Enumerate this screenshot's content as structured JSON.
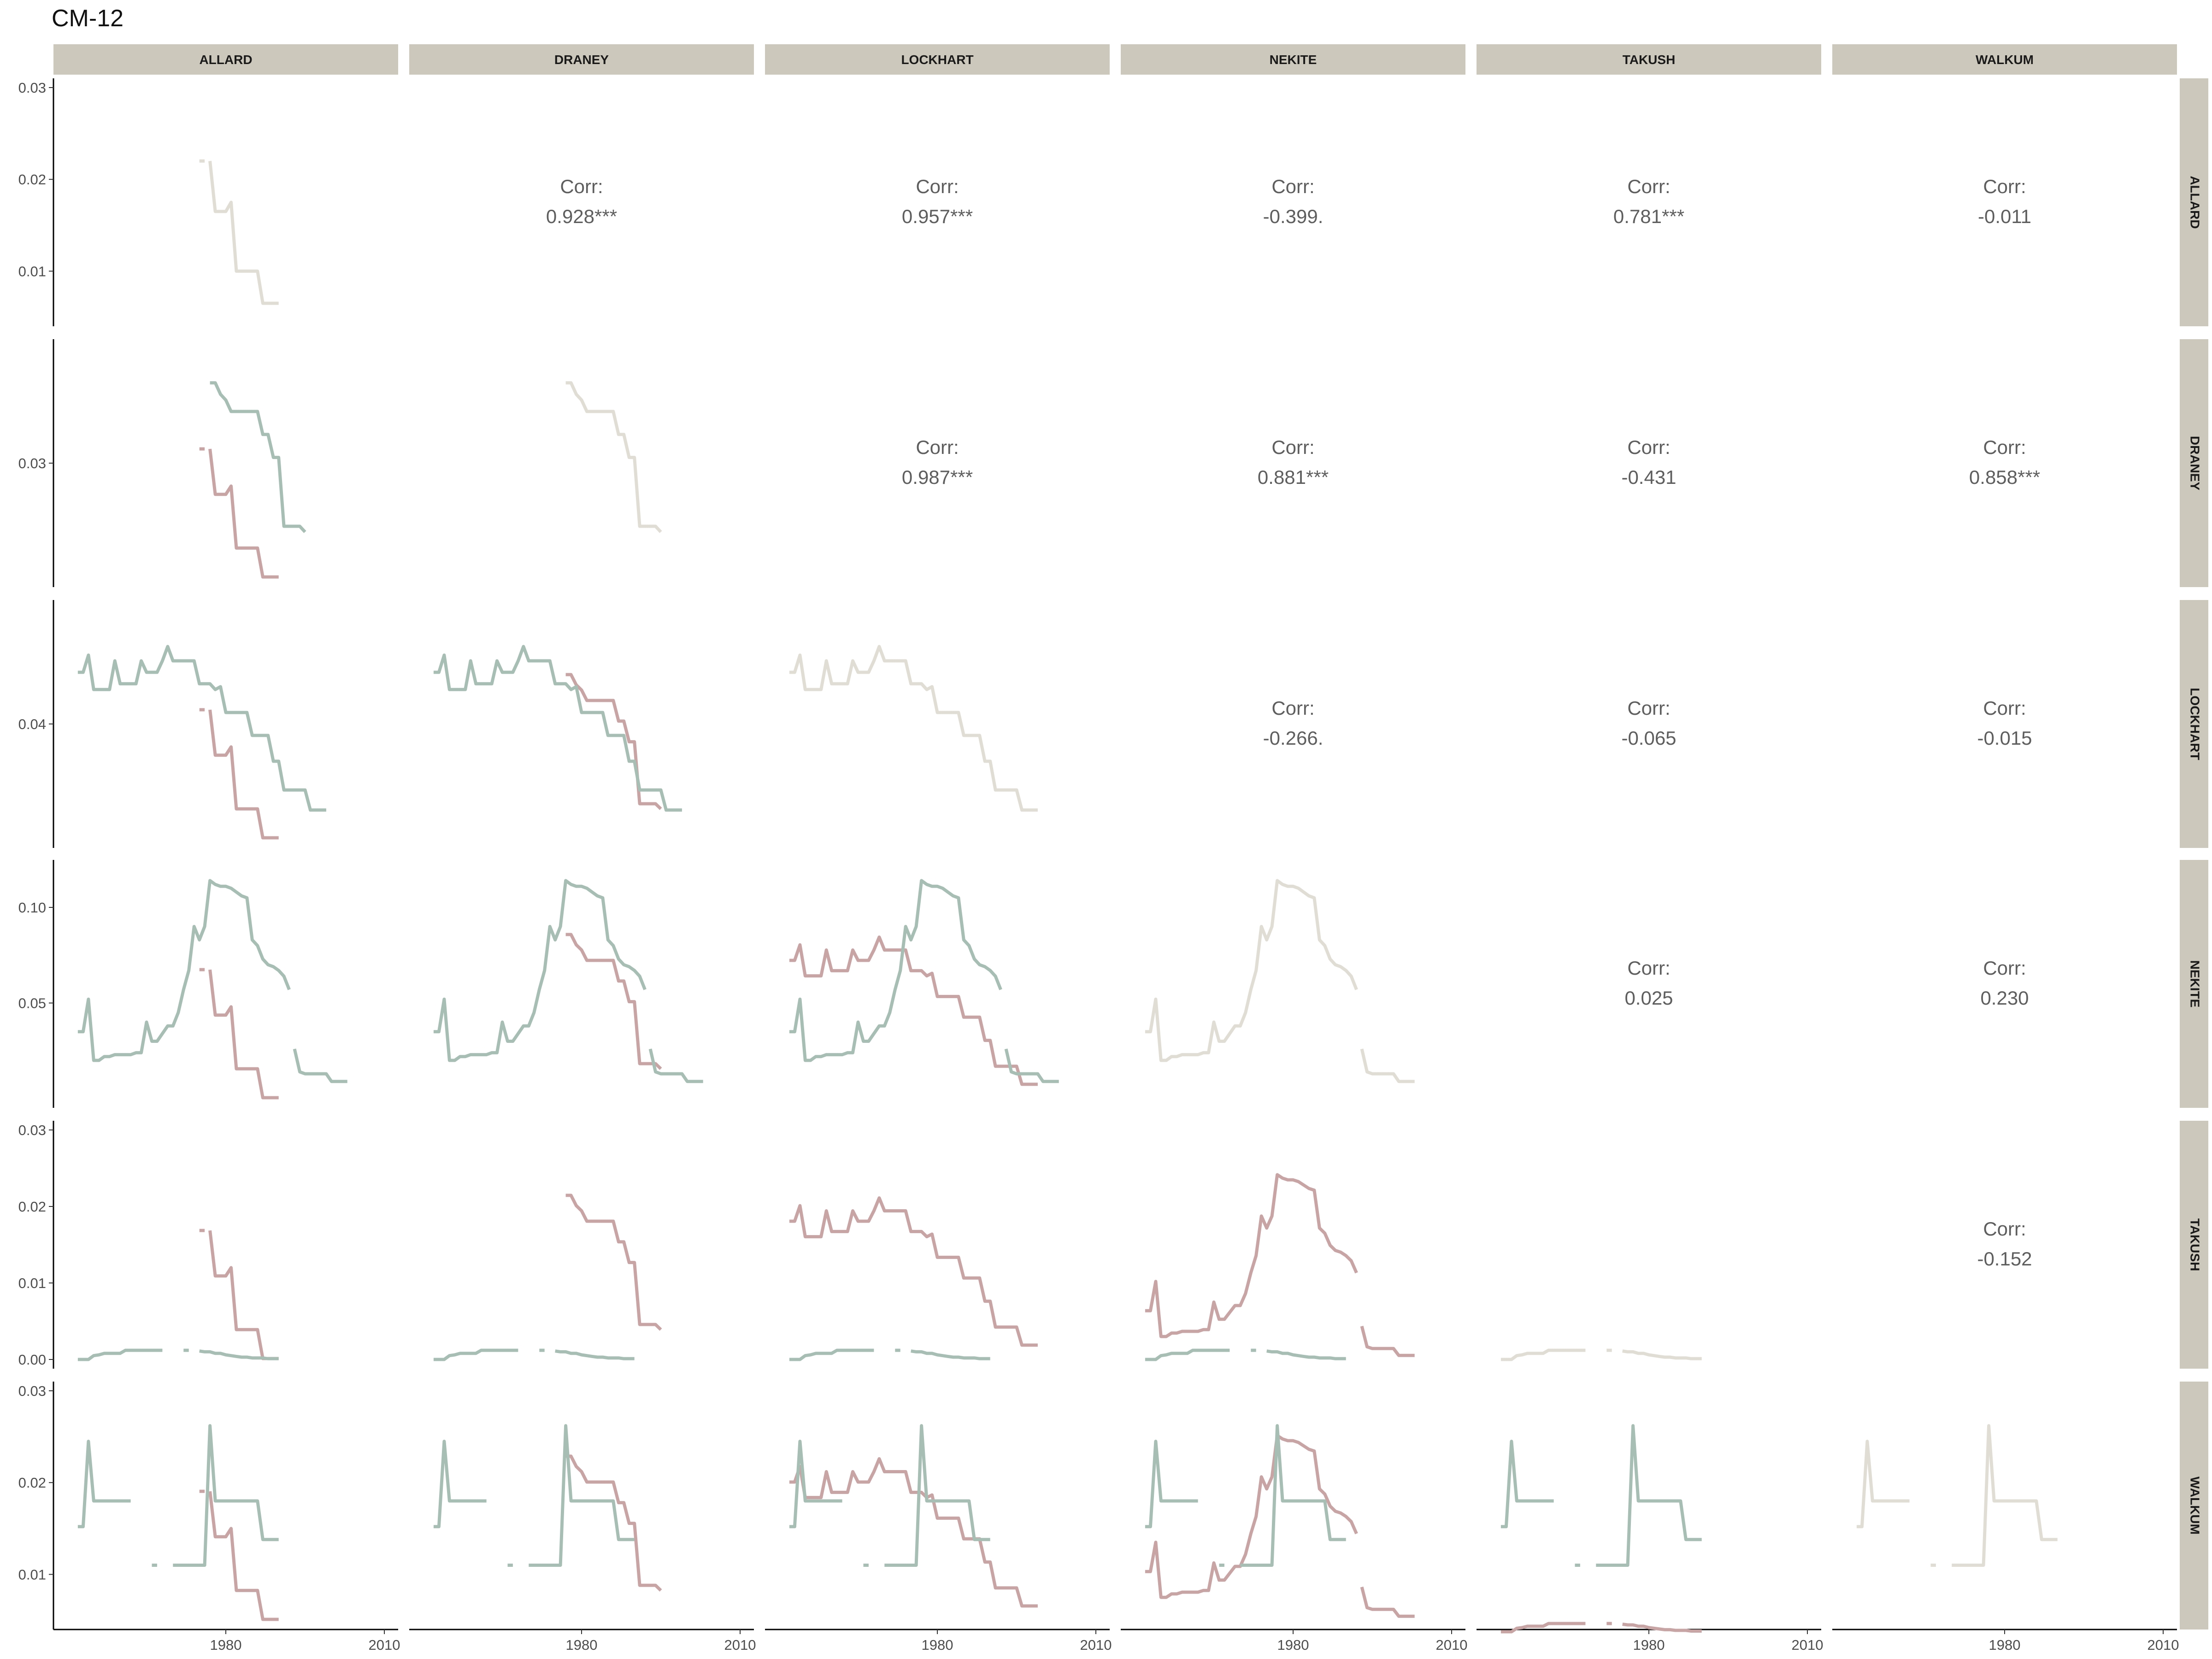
{
  "chart_data": {
    "type": "line",
    "title": "CM-12",
    "variables": [
      "ALLARD",
      "DRANEY",
      "LOCKHART",
      "NEKITE",
      "TAKUSH",
      "WALKUM"
    ],
    "x_ticks": [
      "1980",
      "2010"
    ],
    "x_range": [
      1950,
      2010
    ],
    "series_colors": {
      "diagonal": "#e0ddd5",
      "green": "#a7beb5",
      "red": "#c8a4a5"
    },
    "strip_color": "#ccc8bb",
    "correlations": [
      {
        "row": "ALLARD",
        "col": "DRANEY",
        "label": "Corr:",
        "value": "0.928***"
      },
      {
        "row": "ALLARD",
        "col": "LOCKHART",
        "label": "Corr:",
        "value": "0.957***"
      },
      {
        "row": "ALLARD",
        "col": "NEKITE",
        "label": "Corr:",
        "value": "-0.399."
      },
      {
        "row": "ALLARD",
        "col": "TAKUSH",
        "label": "Corr:",
        "value": "0.781***"
      },
      {
        "row": "ALLARD",
        "col": "WALKUM",
        "label": "Corr:",
        "value": "-0.011"
      },
      {
        "row": "DRANEY",
        "col": "LOCKHART",
        "label": "Corr:",
        "value": "0.987***"
      },
      {
        "row": "DRANEY",
        "col": "NEKITE",
        "label": "Corr:",
        "value": "0.881***"
      },
      {
        "row": "DRANEY",
        "col": "TAKUSH",
        "label": "Corr:",
        "value": "-0.431"
      },
      {
        "row": "DRANEY",
        "col": "WALKUM",
        "label": "Corr:",
        "value": "0.858***"
      },
      {
        "row": "LOCKHART",
        "col": "NEKITE",
        "label": "Corr:",
        "value": "-0.266."
      },
      {
        "row": "LOCKHART",
        "col": "TAKUSH",
        "label": "Corr:",
        "value": "-0.065"
      },
      {
        "row": "LOCKHART",
        "col": "WALKUM",
        "label": "Corr:",
        "value": "-0.015"
      },
      {
        "row": "NEKITE",
        "col": "TAKUSH",
        "label": "Corr:",
        "value": "0.025"
      },
      {
        "row": "NEKITE",
        "col": "WALKUM",
        "label": "Corr:",
        "value": "0.230"
      },
      {
        "row": "TAKUSH",
        "col": "WALKUM",
        "label": "Corr:",
        "value": "-0.152"
      }
    ],
    "row_axes": [
      {
        "var": "ALLARD",
        "range": [
          0.005,
          0.03
        ],
        "ticks": [
          {
            "v": 0.03,
            "label": "0.03"
          },
          {
            "v": 0.02,
            "label": "0.02"
          },
          {
            "v": 0.01,
            "label": "0.01"
          }
        ]
      },
      {
        "var": "DRANEY",
        "range": [
          0.02,
          0.04
        ],
        "ticks": [
          {
            "v": 0.03,
            "label": "0.03"
          }
        ]
      },
      {
        "var": "LOCKHART",
        "range": [
          0.02,
          0.06
        ],
        "ticks": [
          {
            "v": 0.04,
            "label": "0.04"
          }
        ]
      },
      {
        "var": "NEKITE",
        "range": [
          0.0,
          0.12
        ],
        "ticks": [
          {
            "v": 0.1,
            "label": "0.10"
          },
          {
            "v": 0.05,
            "label": "0.05"
          }
        ]
      },
      {
        "var": "TAKUSH",
        "range": [
          0.0,
          0.03
        ],
        "ticks": [
          {
            "v": 0.03,
            "label": "0.03"
          },
          {
            "v": 0.02,
            "label": "0.02"
          },
          {
            "v": 0.01,
            "label": "0.01"
          },
          {
            "v": 0.0,
            "label": "0.00"
          }
        ]
      },
      {
        "var": "WALKUM",
        "range": [
          0.005,
          0.03
        ],
        "ticks": [
          {
            "v": 0.03,
            "label": "0.03"
          },
          {
            "v": 0.02,
            "label": "0.02"
          },
          {
            "v": 0.01,
            "label": "0.01"
          }
        ]
      }
    ],
    "series_values": {
      "ALLARD": [
        [
          1975,
          0.022
        ],
        [
          1976,
          0.022
        ],
        null,
        [
          1977,
          0.022
        ],
        [
          1978,
          0.0165
        ],
        [
          1980,
          0.0165
        ],
        [
          1981,
          0.0175
        ],
        [
          1982,
          0.01
        ],
        [
          1986,
          0.01
        ],
        [
          1987,
          0.0065
        ],
        [
          1990,
          0.0065
        ]
      ],
      "DRANEY": [
        [
          1977,
          0.037
        ],
        [
          1978,
          0.037
        ],
        [
          1979,
          0.036
        ],
        [
          1980,
          0.0355
        ],
        [
          1981,
          0.0345
        ],
        [
          1986,
          0.0345
        ],
        [
          1987,
          0.0325
        ],
        [
          1988,
          0.0325
        ],
        [
          1989,
          0.0305
        ],
        [
          1990,
          0.0305
        ],
        [
          1991,
          0.0245
        ],
        [
          1994,
          0.0245
        ],
        [
          1995,
          0.024
        ]
      ],
      "LOCKHART": [
        [
          1952,
          0.049
        ],
        [
          1953,
          0.049
        ],
        [
          1954,
          0.052
        ],
        [
          1955,
          0.046
        ],
        [
          1958,
          0.046
        ],
        [
          1959,
          0.051
        ],
        [
          1960,
          0.047
        ],
        [
          1963,
          0.047
        ],
        [
          1964,
          0.051
        ],
        [
          1965,
          0.049
        ],
        [
          1967,
          0.049
        ],
        [
          1968,
          0.051
        ],
        [
          1969,
          0.0535
        ],
        [
          1970,
          0.051
        ],
        [
          1974,
          0.051
        ],
        [
          1975,
          0.047
        ],
        [
          1977,
          0.047
        ],
        [
          1978,
          0.046
        ],
        [
          1979,
          0.0465
        ],
        [
          1980,
          0.042
        ],
        [
          1984,
          0.042
        ],
        [
          1985,
          0.038
        ],
        [
          1988,
          0.038
        ],
        [
          1989,
          0.0335
        ],
        [
          1990,
          0.0335
        ],
        [
          1991,
          0.0285
        ],
        [
          1995,
          0.0285
        ],
        [
          1996,
          0.025
        ],
        [
          1999,
          0.025
        ]
      ],
      "NEKITE": [
        [
          1952,
          0.035
        ],
        [
          1953,
          0.035
        ],
        [
          1954,
          0.052
        ],
        [
          1955,
          0.02
        ],
        [
          1956,
          0.02
        ],
        [
          1957,
          0.022
        ],
        [
          1958,
          0.022
        ],
        [
          1959,
          0.023
        ],
        [
          1962,
          0.023
        ],
        [
          1963,
          0.024
        ],
        [
          1964,
          0.024
        ],
        [
          1965,
          0.04
        ],
        [
          1966,
          0.03
        ],
        [
          1967,
          0.03
        ],
        [
          1968,
          0.034
        ],
        [
          1969,
          0.038
        ],
        [
          1970,
          0.038
        ],
        [
          1971,
          0.045
        ],
        [
          1972,
          0.057
        ],
        [
          1973,
          0.067
        ],
        [
          1974,
          0.09
        ],
        [
          1975,
          0.083
        ],
        [
          1976,
          0.09
        ],
        [
          1977,
          0.114
        ],
        [
          1978,
          0.112
        ],
        [
          1979,
          0.111
        ],
        [
          1980,
          0.111
        ],
        [
          1981,
          0.11
        ],
        [
          1982,
          0.108
        ],
        [
          1983,
          0.106
        ],
        [
          1984,
          0.105
        ],
        [
          1985,
          0.083
        ],
        [
          1986,
          0.08
        ],
        [
          1987,
          0.073
        ],
        [
          1988,
          0.07
        ],
        [
          1989,
          0.069
        ],
        [
          1990,
          0.067
        ],
        [
          1991,
          0.064
        ],
        [
          1992,
          0.057
        ],
        null,
        [
          1993,
          0.026
        ],
        [
          1994,
          0.014
        ],
        [
          1995,
          0.013
        ],
        [
          1999,
          0.013
        ],
        [
          2000,
          0.009
        ],
        [
          2003,
          0.009
        ]
      ],
      "TAKUSH": [
        [
          1952,
          0.0
        ],
        [
          1953,
          0.0
        ],
        [
          1954,
          0.0
        ],
        [
          1955,
          0.0005
        ],
        [
          1956,
          0.0006
        ],
        [
          1957,
          0.0008
        ],
        [
          1960,
          0.0008
        ],
        [
          1961,
          0.0012
        ],
        [
          1962,
          0.0012
        ],
        [
          1963,
          0.0012
        ],
        [
          1964,
          0.0012
        ],
        [
          1965,
          0.0012
        ],
        [
          1966,
          0.0012
        ],
        [
          1967,
          0.0012
        ],
        [
          1968,
          0.0012
        ],
        null,
        [
          1972,
          0.0012
        ],
        [
          1973,
          0.0012
        ],
        null,
        [
          1975,
          0.0011
        ],
        [
          1976,
          0.001
        ],
        [
          1977,
          0.001
        ],
        [
          1978,
          0.0008
        ],
        [
          1979,
          0.0008
        ],
        [
          1980,
          0.0006
        ],
        [
          1981,
          0.0005
        ],
        [
          1982,
          0.0004
        ],
        [
          1983,
          0.0003
        ],
        [
          1984,
          0.0003
        ],
        [
          1985,
          0.0002
        ],
        [
          1986,
          0.0002
        ],
        [
          1987,
          0.0002
        ],
        [
          1988,
          0.0001
        ],
        [
          1989,
          0.0001
        ],
        [
          1990,
          0.0001
        ]
      ],
      "WALKUM": [
        [
          1952,
          0.0152
        ],
        [
          1953,
          0.0152
        ],
        [
          1954,
          0.0245
        ],
        [
          1955,
          0.018
        ],
        [
          1956,
          0.018
        ],
        [
          1960,
          0.018
        ],
        [
          1961,
          0.018
        ],
        [
          1962,
          0.018
        ],
        null,
        [
          1966,
          0.011
        ],
        [
          1967,
          0.011
        ],
        null,
        [
          1970,
          0.011
        ],
        [
          1971,
          0.011
        ],
        [
          1972,
          0.011
        ],
        [
          1973,
          0.011
        ],
        [
          1974,
          0.011
        ],
        [
          1975,
          0.011
        ],
        [
          1976,
          0.011
        ],
        [
          1977,
          0.0262
        ],
        [
          1978,
          0.018
        ],
        [
          1979,
          0.018
        ],
        [
          1984,
          0.018
        ],
        [
          1985,
          0.018
        ],
        [
          1986,
          0.018
        ],
        [
          1987,
          0.0138
        ],
        [
          1988,
          0.0138
        ],
        [
          1989,
          0.0138
        ],
        [
          1990,
          0.0138
        ]
      ]
    }
  }
}
